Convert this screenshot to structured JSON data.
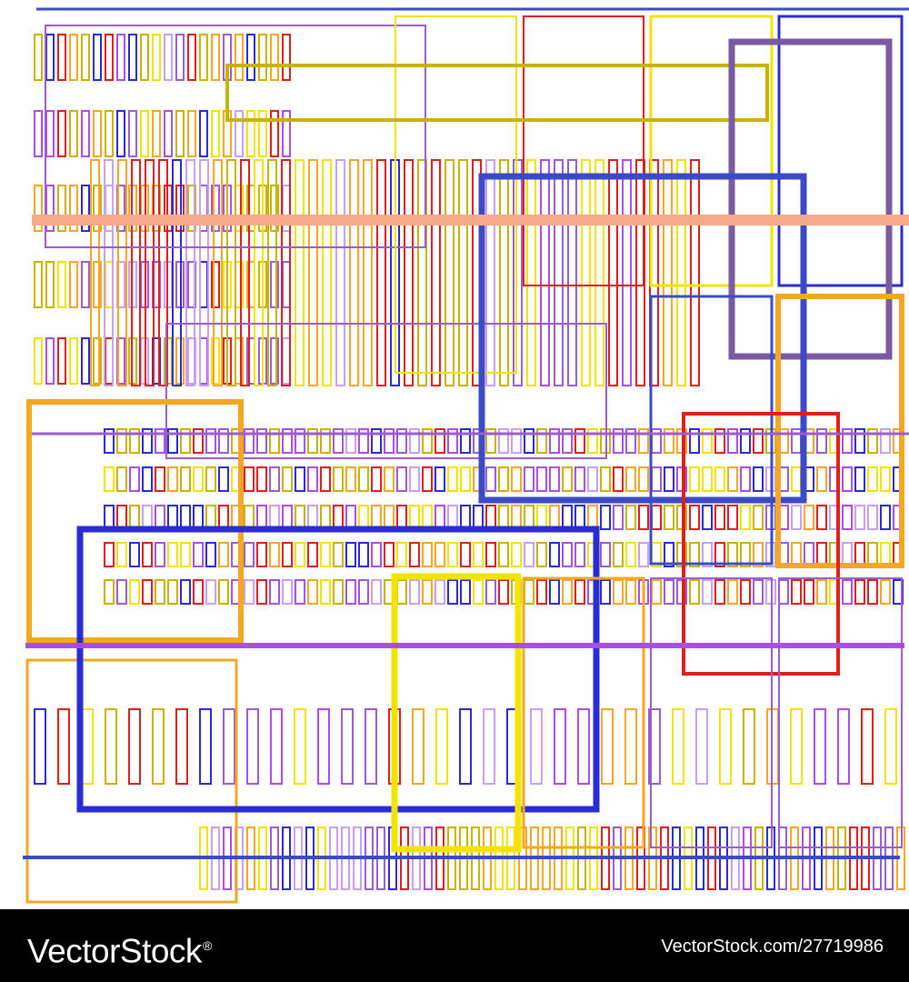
{
  "footer": {
    "brand": "VectorStock",
    "registered_mark": "®",
    "image_id": "VectorStock.com/27719986"
  },
  "palette": {
    "red": "#e01e1e",
    "orange": "#f5a623",
    "yellow": "#f2e400",
    "olive": "#c8b400",
    "blue": "#2b2bd6",
    "royal": "#3b4bc8",
    "purple": "#9b5ccf",
    "lavender": "#c9a0f0",
    "violet": "#a94ee8",
    "salmon": "#f7a98a",
    "mauve": "#7a5aa0",
    "background": "#ffffff",
    "footer_background": "#000000"
  }
}
